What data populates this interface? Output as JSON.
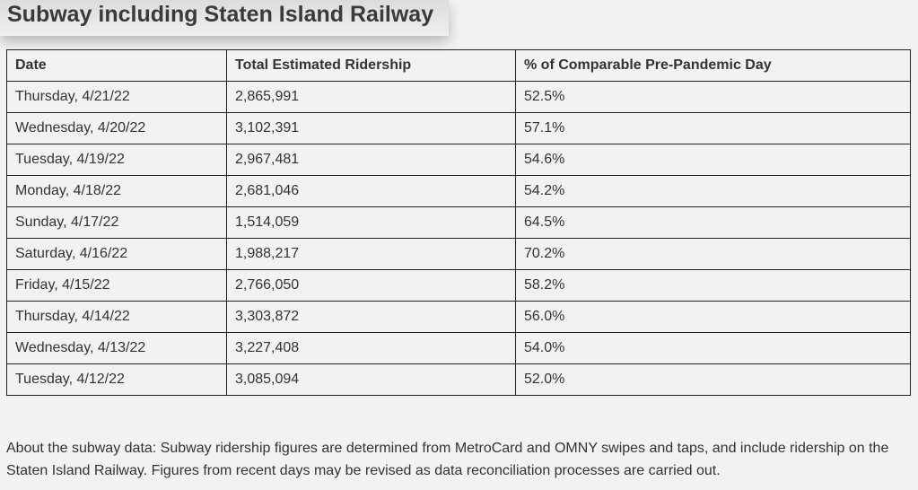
{
  "title": "Subway including Staten Island Railway",
  "table": {
    "headers": [
      "Date",
      "Total Estimated Ridership",
      "% of Comparable Pre-Pandemic Day"
    ],
    "rows": [
      [
        "Thursday, 4/21/22",
        "2,865,991",
        "52.5%"
      ],
      [
        "Wednesday, 4/20/22",
        "3,102,391",
        "57.1%"
      ],
      [
        "Tuesday, 4/19/22",
        "2,967,481",
        "54.6%"
      ],
      [
        "Monday, 4/18/22",
        "2,681,046",
        "54.2%"
      ],
      [
        "Sunday, 4/17/22",
        "1,514,059",
        "64.5%"
      ],
      [
        "Saturday, 4/16/22",
        "1,988,217",
        "70.2%"
      ],
      [
        "Friday, 4/15/22",
        "2,766,050",
        "58.2%"
      ],
      [
        "Thursday, 4/14/22",
        "3,303,872",
        "56.0%"
      ],
      [
        "Wednesday, 4/13/22",
        "3,227,408",
        "54.0%"
      ],
      [
        "Tuesday, 4/12/22",
        "3,085,094",
        "52.0%"
      ]
    ]
  },
  "note": "About the subway data: Subway ridership figures are determined from MetroCard and OMNY swipes and taps, and include ridership on the Staten Island Railway. Figures from recent days may be revised as data reconciliation processes are carried out."
}
